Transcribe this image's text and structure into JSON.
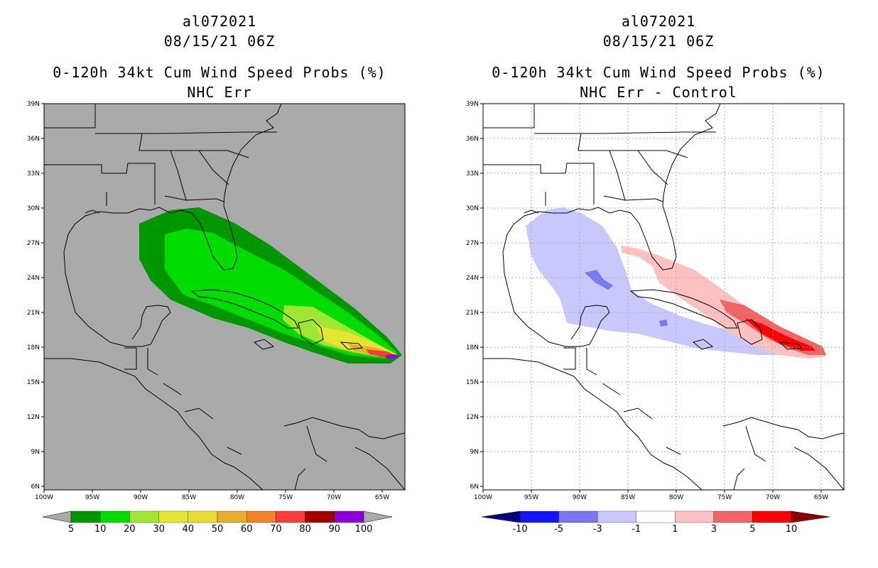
{
  "panels": [
    {
      "storm_id": "al072021",
      "datetime": "08/15/21 06Z",
      "product": "0-120h 34kt Cum Wind Speed Probs (%)",
      "subtitle": "NHC Err",
      "background": "#aaaaaa",
      "colorbar": {
        "labels": [
          "5",
          "10",
          "20",
          "30",
          "40",
          "50",
          "60",
          "70",
          "80",
          "90",
          "100"
        ],
        "colors": [
          "#aaaaaa",
          "#009600",
          "#00dc00",
          "#a0e632",
          "#e6e632",
          "#e6dc32",
          "#e6af2d",
          "#f08228",
          "#fa3c3c",
          "#a00000",
          "#8c00dc",
          "#aaaaaa"
        ]
      }
    },
    {
      "storm_id": "al072021",
      "datetime": "08/15/21 06Z",
      "product": "0-120h 34kt Cum Wind Speed Probs (%)",
      "subtitle": "NHC Err - Control",
      "background": "#ffffff",
      "colorbar": {
        "labels": [
          "-10",
          "-5",
          "-3",
          "-1",
          "1",
          "3",
          "5",
          "10"
        ],
        "colors": [
          "#000080",
          "#1414ff",
          "#7878f0",
          "#c8c8ff",
          "#ffffff",
          "#ffc0c0",
          "#f06464",
          "#ff0000",
          "#8c0000"
        ]
      }
    }
  ],
  "axes": {
    "lat_labels": [
      "39N",
      "36N",
      "33N",
      "30N",
      "27N",
      "24N",
      "21N",
      "18N",
      "15N",
      "12N",
      "9N",
      "6N"
    ],
    "lon_labels": [
      "100W",
      "95W",
      "90W",
      "85W",
      "80W",
      "75W",
      "70W",
      "65W"
    ]
  }
}
